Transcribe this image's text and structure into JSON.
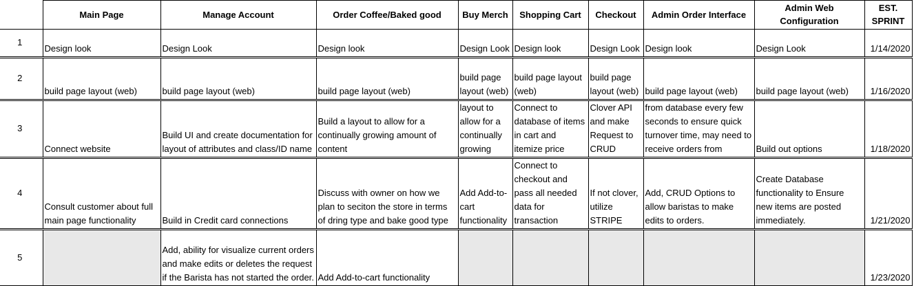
{
  "headers": [
    "",
    "Main Page",
    "Manage Account",
    "Order Coffee/Baked good",
    "Buy Merch",
    "Shopping Cart",
    "Checkout",
    "Admin Order Interface",
    "Admin Web Configuration",
    "EST. SPRINT"
  ],
  "rows": [
    {
      "num": "1",
      "cells": [
        "Design look",
        "Design Look",
        "Design look",
        "Design Look",
        "Design look",
        "Design Look",
        "Design look",
        "Design Look"
      ],
      "sprint": "1/14/2020"
    },
    {
      "num": "2",
      "cells": [
        "build page layout (web)",
        "build page layout (web)",
        "build page layout (web)",
        "build page layout (web)",
        "build page layout (web)",
        "build page layout (web)",
        "build page layout (web)",
        "build page layout (web)"
      ],
      "sprint": "1/16/2020"
    },
    {
      "num": "3",
      "cells": [
        "Connect website",
        "Build UI and create documentation for layout of attributes and class/ID name",
        "Build a layout to allow for a continually growing amount of content",
        "layout to allow for a continually growing",
        "Connect to database of items in cart and itemize price",
        "Clover API and make Request to CRUD",
        "from database every few seconds to ensure quick turnover time, may need to receive orders from",
        "Build out options"
      ],
      "sprint": "1/18/2020"
    },
    {
      "num": "4",
      "cells": [
        "Consult customer about full main page functionality",
        "Build in Credit card connections",
        "Discuss with owner on how we plan to seciton the store in terms of dring type and bake good type",
        "Add Add-to-cart functionality",
        "Connect to checkout and pass all needed data for transaction",
        "If not clover, utilize STRIPE",
        "Add, CRUD Options to allow baristas to make edits to orders.",
        "Create Database functionality to Ensure new items are posted immediately."
      ],
      "sprint": "1/21/2020"
    },
    {
      "num": "5",
      "cells": [
        "",
        "Add, ability for visualize current orders and make edits or deletes the request if the Barista has not started the order.",
        "Add Add-to-cart functionality",
        "",
        "",
        "",
        "",
        ""
      ],
      "sprint": "1/23/2020"
    }
  ]
}
